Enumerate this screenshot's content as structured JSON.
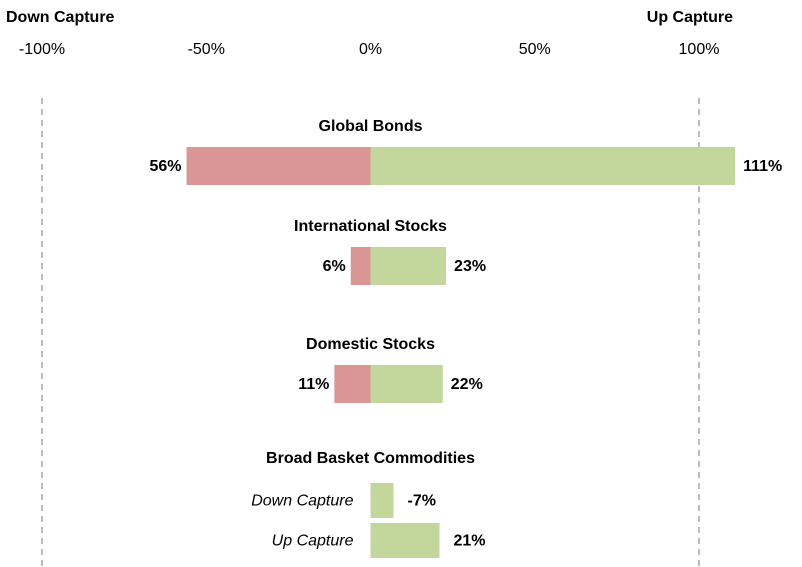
{
  "chart_data": {
    "type": "capture-bar",
    "x_label_left": "Down Capture",
    "x_label_right": "Up Capture",
    "categories": [
      "Global Bonds",
      "International Stocks",
      "Domestic Stocks",
      "Broad Basket Commodities"
    ],
    "split": [
      false,
      false,
      false,
      true
    ],
    "series": [
      {
        "name": "Down Capture",
        "direction": "left",
        "color": "#d99694",
        "colors": [
          "#d99694",
          "#d99694",
          "#d99694",
          "#c3d69b"
        ],
        "values": [
          56,
          6,
          11,
          -7
        ],
        "value_labels": [
          "56%",
          "6%",
          "11%",
          "-7%"
        ]
      },
      {
        "name": "Up Capture",
        "direction": "right",
        "color": "#c3d69b",
        "values": [
          111,
          23,
          22,
          21
        ],
        "value_labels": [
          "111%",
          "23%",
          "22%",
          "21%"
        ]
      }
    ],
    "xlim": [
      -100,
      100
    ],
    "xticks": [
      {
        "value": -100,
        "label": "-100%"
      },
      {
        "value": -50,
        "label": "-50%"
      },
      {
        "value": 0,
        "label": "0%"
      },
      {
        "value": 50,
        "label": "50%"
      },
      {
        "value": 100,
        "label": "100%"
      }
    ],
    "guide_lines": [
      -100,
      100
    ]
  }
}
